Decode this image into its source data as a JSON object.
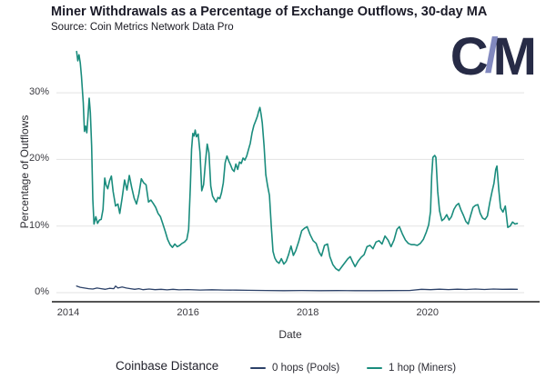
{
  "header": {
    "title": "Miner Withdrawals as a Percentage of Exchange Outflows, 30-day MA",
    "subtitle": "Source: Coin Metrics Network Data Pro"
  },
  "logo": {
    "c": "C",
    "slash": "/",
    "m": "M"
  },
  "colors": {
    "background": "#ffffff",
    "grid": "#e3e3e3",
    "axis": "#1c1c1c",
    "text_primary": "#1b1b28",
    "text_secondary": "#3a3a40",
    "logo_navy": "#272b46",
    "logo_slash": "#8289bf",
    "pools_line": "#2c4168",
    "miners_line": "#1a8c7d"
  },
  "chart_data": {
    "type": "line",
    "title": "Miner Withdrawals as a Percentage of Exchange Outflows, 30-day MA",
    "subtitle": "Source: Coin Metrics Network Data Pro",
    "xlabel": "Date",
    "ylabel": "Percentage of Outflows",
    "grid": true,
    "x_range_years": [
      2013.8,
      2021.6
    ],
    "ylim_pct": [
      0,
      37
    ],
    "y_ticks": [
      {
        "label": "0%",
        "value": 0
      },
      {
        "label": "10%",
        "value": 10
      },
      {
        "label": "20%",
        "value": 20
      },
      {
        "label": "30%",
        "value": 30
      }
    ],
    "x_ticks": [
      {
        "label": "2014",
        "year": 2014
      },
      {
        "label": "2016",
        "year": 2016
      },
      {
        "label": "2018",
        "year": 2018
      },
      {
        "label": "2020",
        "year": 2020
      }
    ],
    "legend": {
      "title": "Coinbase Distance",
      "position": "bottom"
    },
    "series": [
      {
        "name": "0 hops (Pools)",
        "color": "#2c4168",
        "points": [
          [
            2014.14,
            1.0
          ],
          [
            2014.2,
            0.8
          ],
          [
            2014.27,
            0.7
          ],
          [
            2014.34,
            0.6
          ],
          [
            2014.41,
            0.55
          ],
          [
            2014.48,
            0.7
          ],
          [
            2014.55,
            0.6
          ],
          [
            2014.62,
            0.5
          ],
          [
            2014.69,
            0.65
          ],
          [
            2014.76,
            0.6
          ],
          [
            2014.79,
            1.0
          ],
          [
            2014.83,
            0.7
          ],
          [
            2014.9,
            0.85
          ],
          [
            2014.97,
            0.7
          ],
          [
            2015.04,
            0.6
          ],
          [
            2015.11,
            0.5
          ],
          [
            2015.18,
            0.6
          ],
          [
            2015.25,
            0.45
          ],
          [
            2015.35,
            0.55
          ],
          [
            2015.45,
            0.45
          ],
          [
            2015.55,
            0.5
          ],
          [
            2015.65,
            0.42
          ],
          [
            2015.75,
            0.5
          ],
          [
            2015.85,
            0.42
          ],
          [
            2016.0,
            0.46
          ],
          [
            2016.2,
            0.4
          ],
          [
            2016.4,
            0.44
          ],
          [
            2016.6,
            0.4
          ],
          [
            2016.8,
            0.38
          ],
          [
            2017.0,
            0.36
          ],
          [
            2017.3,
            0.33
          ],
          [
            2017.6,
            0.3
          ],
          [
            2017.9,
            0.33
          ],
          [
            2018.2,
            0.3
          ],
          [
            2018.5,
            0.31
          ],
          [
            2018.8,
            0.3
          ],
          [
            2019.1,
            0.3
          ],
          [
            2019.4,
            0.31
          ],
          [
            2019.7,
            0.33
          ],
          [
            2019.9,
            0.5
          ],
          [
            2020.05,
            0.45
          ],
          [
            2020.2,
            0.52
          ],
          [
            2020.35,
            0.46
          ],
          [
            2020.5,
            0.52
          ],
          [
            2020.65,
            0.48
          ],
          [
            2020.8,
            0.54
          ],
          [
            2020.95,
            0.48
          ],
          [
            2021.1,
            0.54
          ],
          [
            2021.25,
            0.5
          ],
          [
            2021.4,
            0.52
          ],
          [
            2021.5,
            0.5
          ]
        ]
      },
      {
        "name": "1 hop (Miners)",
        "color": "#1a8c7d",
        "points": [
          [
            2014.14,
            36.2
          ],
          [
            2014.16,
            34.8
          ],
          [
            2014.18,
            35.7
          ],
          [
            2014.2,
            34.5
          ],
          [
            2014.22,
            32.5
          ],
          [
            2014.25,
            28.5
          ],
          [
            2014.27,
            24.2
          ],
          [
            2014.29,
            25.0
          ],
          [
            2014.31,
            24.0
          ],
          [
            2014.33,
            26.5
          ],
          [
            2014.35,
            29.2
          ],
          [
            2014.37,
            27.0
          ],
          [
            2014.39,
            22.0
          ],
          [
            2014.41,
            14.0
          ],
          [
            2014.43,
            10.3
          ],
          [
            2014.46,
            11.4
          ],
          [
            2014.49,
            10.4
          ],
          [
            2014.52,
            10.9
          ],
          [
            2014.55,
            11.0
          ],
          [
            2014.58,
            12.5
          ],
          [
            2014.61,
            17.2
          ],
          [
            2014.63,
            16.2
          ],
          [
            2014.66,
            15.6
          ],
          [
            2014.69,
            16.8
          ],
          [
            2014.72,
            17.5
          ],
          [
            2014.75,
            15.2
          ],
          [
            2014.79,
            13.0
          ],
          [
            2014.83,
            13.3
          ],
          [
            2014.86,
            11.9
          ],
          [
            2014.9,
            14.2
          ],
          [
            2014.94,
            16.9
          ],
          [
            2014.98,
            15.4
          ],
          [
            2015.02,
            17.6
          ],
          [
            2015.06,
            15.8
          ],
          [
            2015.1,
            14.2
          ],
          [
            2015.14,
            13.3
          ],
          [
            2015.18,
            14.8
          ],
          [
            2015.22,
            17.1
          ],
          [
            2015.26,
            16.5
          ],
          [
            2015.3,
            16.2
          ],
          [
            2015.34,
            13.6
          ],
          [
            2015.38,
            13.9
          ],
          [
            2015.42,
            13.4
          ],
          [
            2015.46,
            12.8
          ],
          [
            2015.5,
            11.9
          ],
          [
            2015.54,
            11.4
          ],
          [
            2015.58,
            10.3
          ],
          [
            2015.62,
            9.2
          ],
          [
            2015.66,
            8.0
          ],
          [
            2015.7,
            7.2
          ],
          [
            2015.74,
            6.8
          ],
          [
            2015.78,
            7.3
          ],
          [
            2015.82,
            6.9
          ],
          [
            2015.86,
            7.1
          ],
          [
            2015.9,
            7.4
          ],
          [
            2015.94,
            7.6
          ],
          [
            2015.98,
            8.0
          ],
          [
            2016.01,
            9.5
          ],
          [
            2016.04,
            16.0
          ],
          [
            2016.06,
            21.5
          ],
          [
            2016.08,
            23.9
          ],
          [
            2016.1,
            23.5
          ],
          [
            2016.12,
            24.4
          ],
          [
            2016.14,
            23.4
          ],
          [
            2016.17,
            23.8
          ],
          [
            2016.2,
            21.0
          ],
          [
            2016.23,
            15.3
          ],
          [
            2016.26,
            16.2
          ],
          [
            2016.29,
            19.5
          ],
          [
            2016.32,
            22.3
          ],
          [
            2016.35,
            21.0
          ],
          [
            2016.38,
            16.0
          ],
          [
            2016.41,
            14.5
          ],
          [
            2016.44,
            14.0
          ],
          [
            2016.47,
            13.6
          ],
          [
            2016.5,
            14.3
          ],
          [
            2016.53,
            14.1
          ],
          [
            2016.56,
            15.0
          ],
          [
            2016.59,
            16.5
          ],
          [
            2016.62,
            19.5
          ],
          [
            2016.65,
            20.5
          ],
          [
            2016.68,
            19.8
          ],
          [
            2016.71,
            19.2
          ],
          [
            2016.74,
            18.5
          ],
          [
            2016.77,
            18.2
          ],
          [
            2016.8,
            19.3
          ],
          [
            2016.83,
            18.5
          ],
          [
            2016.86,
            19.6
          ],
          [
            2016.89,
            19.4
          ],
          [
            2016.92,
            20.2
          ],
          [
            2016.95,
            19.9
          ],
          [
            2016.98,
            20.5
          ],
          [
            2017.01,
            21.5
          ],
          [
            2017.04,
            22.4
          ],
          [
            2017.07,
            24.0
          ],
          [
            2017.1,
            25.1
          ],
          [
            2017.13,
            25.8
          ],
          [
            2017.16,
            26.5
          ],
          [
            2017.18,
            27.2
          ],
          [
            2017.2,
            27.8
          ],
          [
            2017.22,
            26.8
          ],
          [
            2017.24,
            25.5
          ],
          [
            2017.27,
            22.0
          ],
          [
            2017.3,
            17.7
          ],
          [
            2017.33,
            16.0
          ],
          [
            2017.36,
            14.6
          ],
          [
            2017.39,
            10.0
          ],
          [
            2017.42,
            6.2
          ],
          [
            2017.45,
            5.2
          ],
          [
            2017.48,
            4.7
          ],
          [
            2017.52,
            4.4
          ],
          [
            2017.56,
            5.1
          ],
          [
            2017.6,
            4.3
          ],
          [
            2017.64,
            4.7
          ],
          [
            2017.68,
            5.7
          ],
          [
            2017.72,
            7.0
          ],
          [
            2017.76,
            5.6
          ],
          [
            2017.8,
            6.3
          ],
          [
            2017.85,
            7.7
          ],
          [
            2017.9,
            9.3
          ],
          [
            2017.95,
            9.7
          ],
          [
            2017.99,
            9.9
          ],
          [
            2018.04,
            8.7
          ],
          [
            2018.09,
            7.8
          ],
          [
            2018.14,
            7.4
          ],
          [
            2018.19,
            6.1
          ],
          [
            2018.23,
            5.5
          ],
          [
            2018.28,
            7.1
          ],
          [
            2018.33,
            7.3
          ],
          [
            2018.37,
            5.4
          ],
          [
            2018.42,
            4.2
          ],
          [
            2018.47,
            3.6
          ],
          [
            2018.52,
            3.3
          ],
          [
            2018.57,
            3.9
          ],
          [
            2018.62,
            4.5
          ],
          [
            2018.67,
            5.1
          ],
          [
            2018.71,
            5.4
          ],
          [
            2018.75,
            4.6
          ],
          [
            2018.79,
            3.9
          ],
          [
            2018.84,
            4.7
          ],
          [
            2018.89,
            5.3
          ],
          [
            2018.94,
            5.7
          ],
          [
            2018.99,
            6.9
          ],
          [
            2019.04,
            7.1
          ],
          [
            2019.09,
            6.6
          ],
          [
            2019.14,
            7.6
          ],
          [
            2019.19,
            7.8
          ],
          [
            2019.24,
            7.3
          ],
          [
            2019.29,
            8.5
          ],
          [
            2019.34,
            7.9
          ],
          [
            2019.39,
            6.9
          ],
          [
            2019.44,
            7.9
          ],
          [
            2019.49,
            9.5
          ],
          [
            2019.53,
            9.9
          ],
          [
            2019.58,
            8.8
          ],
          [
            2019.63,
            7.9
          ],
          [
            2019.68,
            7.4
          ],
          [
            2019.73,
            7.2
          ],
          [
            2019.78,
            7.2
          ],
          [
            2019.83,
            7.1
          ],
          [
            2019.88,
            7.4
          ],
          [
            2019.93,
            8.0
          ],
          [
            2019.98,
            9.1
          ],
          [
            2020.02,
            10.2
          ],
          [
            2020.05,
            12.2
          ],
          [
            2020.07,
            17.5
          ],
          [
            2020.09,
            20.3
          ],
          [
            2020.12,
            20.6
          ],
          [
            2020.14,
            20.3
          ],
          [
            2020.17,
            15.2
          ],
          [
            2020.2,
            12.3
          ],
          [
            2020.24,
            10.8
          ],
          [
            2020.28,
            11.1
          ],
          [
            2020.32,
            11.7
          ],
          [
            2020.36,
            10.9
          ],
          [
            2020.4,
            11.4
          ],
          [
            2020.44,
            12.5
          ],
          [
            2020.48,
            13.1
          ],
          [
            2020.52,
            13.4
          ],
          [
            2020.56,
            12.4
          ],
          [
            2020.6,
            11.6
          ],
          [
            2020.64,
            10.7
          ],
          [
            2020.68,
            10.3
          ],
          [
            2020.72,
            11.6
          ],
          [
            2020.76,
            12.8
          ],
          [
            2020.8,
            13.1
          ],
          [
            2020.84,
            13.2
          ],
          [
            2020.88,
            11.9
          ],
          [
            2020.92,
            11.2
          ],
          [
            2020.96,
            11.0
          ],
          [
            2021.0,
            11.5
          ],
          [
            2021.04,
            13.5
          ],
          [
            2021.08,
            15.3
          ],
          [
            2021.11,
            16.4
          ],
          [
            2021.14,
            18.5
          ],
          [
            2021.16,
            19.0
          ],
          [
            2021.19,
            15.5
          ],
          [
            2021.22,
            12.7
          ],
          [
            2021.26,
            12.1
          ],
          [
            2021.3,
            13.0
          ],
          [
            2021.34,
            9.8
          ],
          [
            2021.38,
            10.0
          ],
          [
            2021.42,
            10.6
          ],
          [
            2021.46,
            10.3
          ],
          [
            2021.5,
            10.4
          ]
        ]
      }
    ]
  }
}
